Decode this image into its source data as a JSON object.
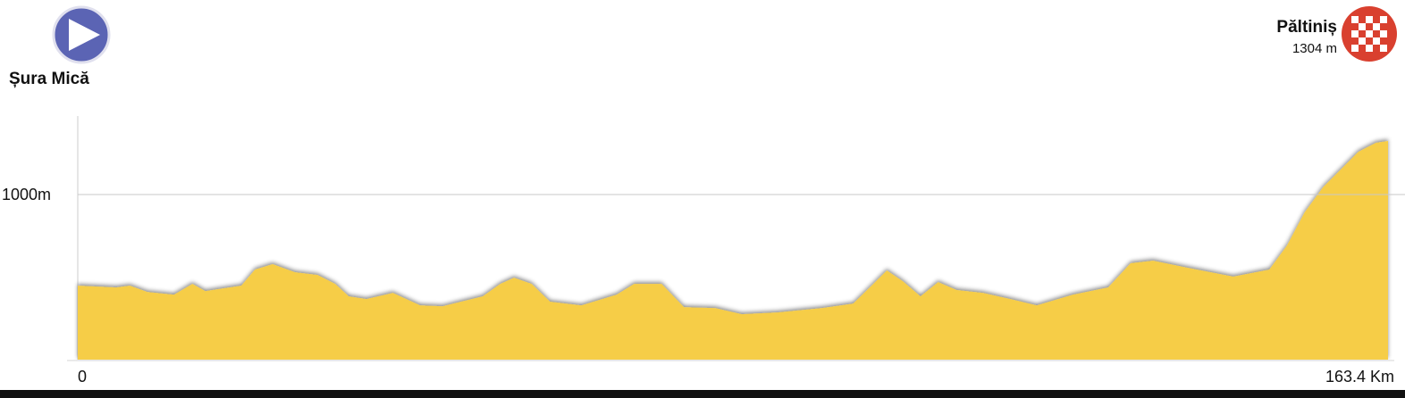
{
  "start": {
    "name": "Șura Mică",
    "icon": "play-icon",
    "color": "#5b64b4"
  },
  "finish": {
    "name": "Păltiniș",
    "elevation_label": "1304 m",
    "icon": "checkered-flag-icon",
    "color": "#d9402f"
  },
  "chart_data": {
    "type": "area",
    "title": "",
    "xlabel": "",
    "ylabel": "",
    "x_tick_labels": [
      "0",
      "163.4 Km"
    ],
    "y_tick_labels": [
      "1000m"
    ],
    "y_ticks": [
      1000
    ],
    "xlim": [
      0,
      163.4
    ],
    "ylim": [
      63,
      1446
    ],
    "grid": true,
    "fill_color": "#f6cd47",
    "series": [
      {
        "x": [
          0,
          4.8,
          6.5,
          8.7,
          12.0,
          14.3,
          15.9,
          20.4,
          22.1,
          24.3,
          27.1,
          29.9,
          32.1,
          33.8,
          36.0,
          39.3,
          42.7,
          45.5,
          50.5,
          52.7,
          54.4,
          56.6,
          58.9,
          62.8,
          67.2,
          69.4,
          72.8,
          75.6,
          79.5,
          82.8,
          87.3,
          92.8,
          96.7,
          99.0,
          100.9,
          102.9,
          105.1,
          107.3,
          109.6,
          112.9,
          116.3,
          119.6,
          124.1,
          128.5,
          131.3,
          134.1,
          138.5,
          144.1,
          148.6,
          150.8,
          153.0,
          155.3,
          157.5,
          159.7,
          161.9,
          163.4
        ],
        "y": [
          483,
          473,
          483,
          447,
          432,
          493,
          452,
          483,
          574,
          605,
          559,
          544,
          493,
          422,
          407,
          442,
          371,
          366,
          422,
          493,
          528,
          493,
          392,
          371,
          432,
          493,
          493,
          361,
          356,
          321,
          331,
          356,
          381,
          483,
          569,
          508,
          422,
          503,
          458,
          442,
          407,
          371,
          432,
          473,
          610,
          625,
          584,
          534,
          574,
          711,
          899,
          1041,
          1142,
          1243,
          1294,
          1304
        ]
      }
    ]
  }
}
